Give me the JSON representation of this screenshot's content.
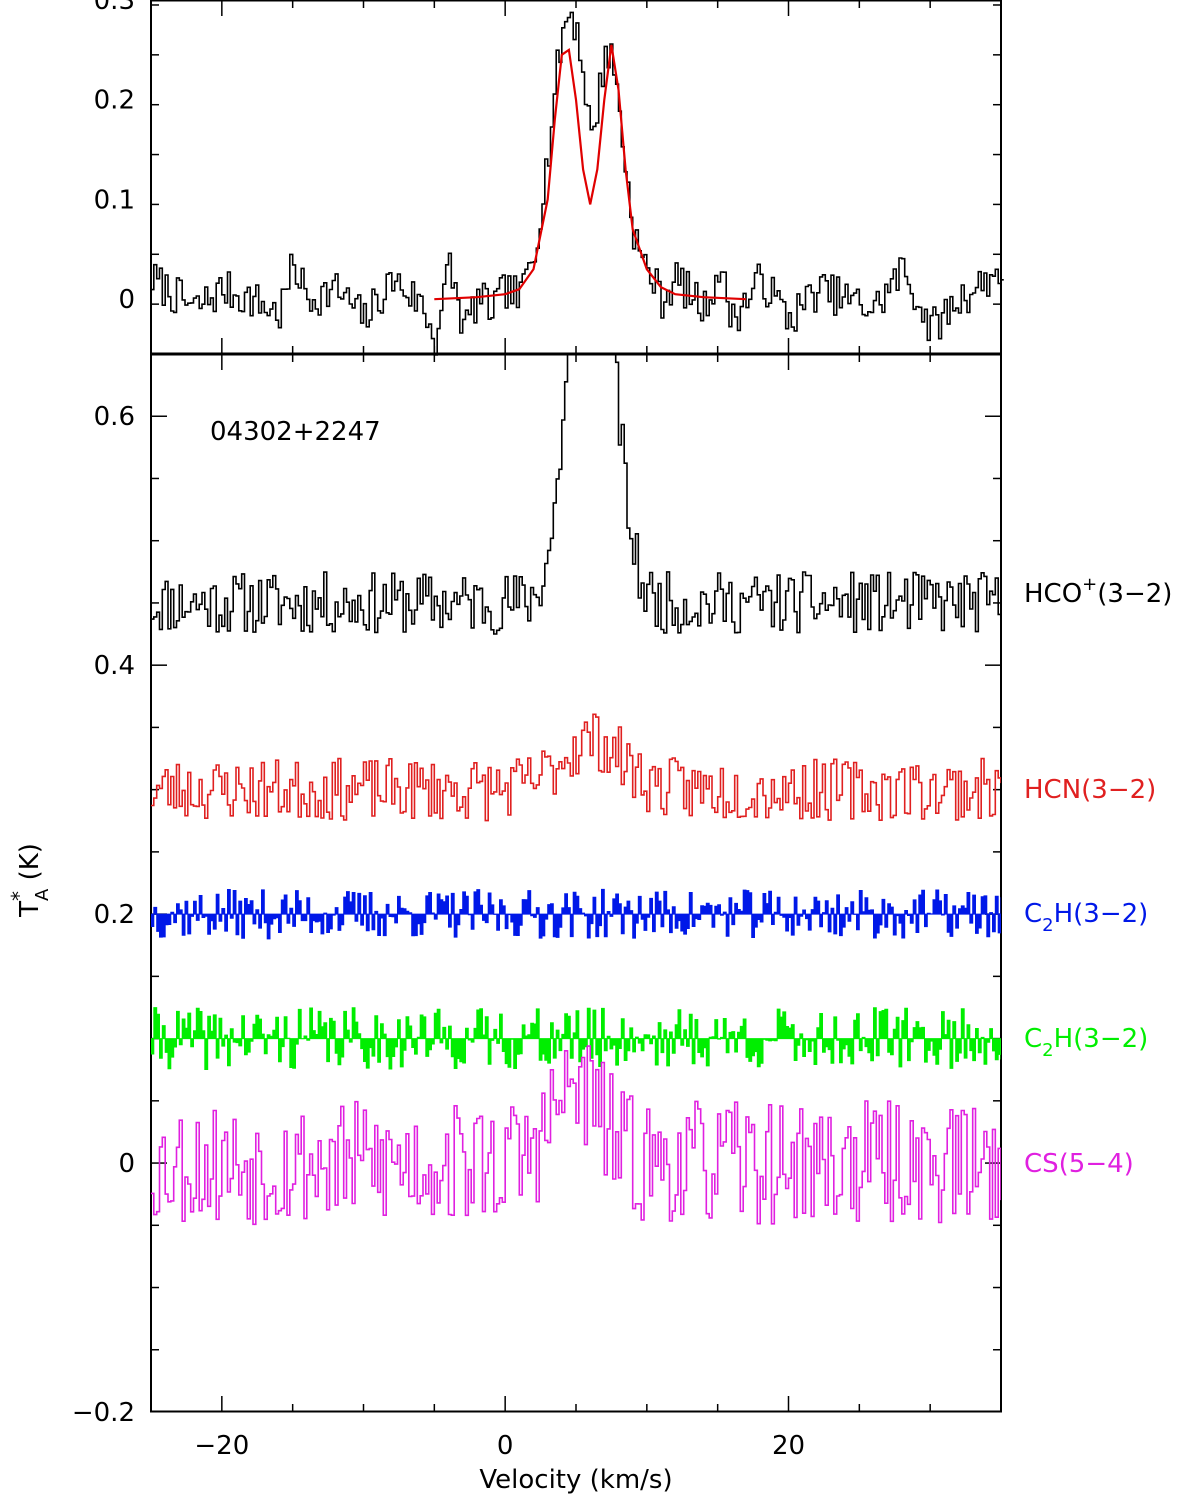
{
  "chart_data": [
    {
      "type": "line",
      "panel": "top",
      "xlabel": "",
      "ylabel": "",
      "xlim": [
        -25,
        35
      ],
      "ylim": [
        -0.055,
        0.3
      ],
      "yticks": [
        "0",
        "0.1",
        "0.2",
        "0.3"
      ],
      "ytick_values": [
        0,
        0.1,
        0.2,
        0.3
      ],
      "series": [
        {
          "color": "#000000",
          "style": "histogram",
          "x": [
            -25,
            -22,
            -20,
            -18,
            -16,
            -15,
            -14,
            -12,
            -10,
            -8,
            -6,
            -5,
            -4,
            -3,
            -2,
            -1,
            0,
            1,
            1.5,
            2,
            2.5,
            3,
            3.5,
            4,
            4.5,
            5,
            5.5,
            6,
            6.5,
            7,
            7.5,
            8,
            8.5,
            9,
            9.5,
            10,
            11,
            12,
            13,
            14,
            15,
            16,
            17,
            18,
            20,
            22,
            24,
            26,
            28,
            30,
            32,
            34,
            35
          ],
          "values": [
            0.02,
            -0.01,
            0.01,
            0.0,
            -0.015,
            0.035,
            0.0,
            0.01,
            -0.02,
            0.02,
            -0.005,
            -0.04,
            0.035,
            -0.03,
            0.0,
            -0.01,
            0.01,
            0.0,
            0.03,
            0.05,
            0.1,
            0.15,
            0.22,
            0.27,
            0.29,
            0.27,
            0.22,
            0.16,
            0.2,
            0.25,
            0.24,
            0.19,
            0.12,
            0.07,
            0.04,
            0.03,
            0.0,
            0.02,
            0.005,
            -0.01,
            0.03,
            -0.02,
            0.0,
            0.02,
            -0.02,
            0.01,
            0.0,
            -0.01,
            0.03,
            -0.03,
            0.0,
            0.02,
            0.03
          ]
        },
        {
          "color": "#e00000",
          "style": "line",
          "x": [
            -5,
            -2,
            0,
            1,
            2,
            3,
            3.5,
            4,
            4.5,
            5,
            5.5,
            6,
            6.5,
            7,
            7.5,
            8,
            8.5,
            9,
            10,
            11,
            12,
            14,
            17
          ],
          "values": [
            0.0,
            0.002,
            0.005,
            0.01,
            0.03,
            0.1,
            0.18,
            0.245,
            0.25,
            0.2,
            0.13,
            0.095,
            0.13,
            0.2,
            0.255,
            0.21,
            0.13,
            0.07,
            0.03,
            0.012,
            0.005,
            0.002,
            0.0
          ]
        }
      ]
    },
    {
      "type": "line",
      "panel": "bottom",
      "source": "04302+2247",
      "xlabel": "Velocity (km/s)",
      "ylabel_main": "T",
      "ylabel_sup": "*",
      "ylabel_sub": "A",
      "ylabel_unit": " (K)",
      "xlim": [
        -25,
        35
      ],
      "ylim": [
        -0.2,
        0.65
      ],
      "xticks": [
        "−20",
        "0",
        "20"
      ],
      "xtick_values": [
        -20,
        0,
        20
      ],
      "yticks": [
        "−0.2",
        "0",
        "0.2",
        "0.4",
        "0.6"
      ],
      "ytick_values": [
        -0.2,
        0,
        0.2,
        0.4,
        0.6
      ],
      "series": [
        {
          "label_main": "HCO",
          "label_sup": "+",
          "label_rest": "(3−2)",
          "color": "#000000",
          "style": "histogram",
          "baseline": 0.45,
          "amplitude": 0.025,
          "peak": {
            "center": 6,
            "width": 2.0,
            "height": 0.4
          }
        },
        {
          "label_main": "HCN(3−2)",
          "color": "#e02020",
          "style": "histogram",
          "baseline": 0.3,
          "amplitude": 0.025,
          "peak": {
            "center": 6,
            "width": 3.0,
            "height": 0.04
          }
        },
        {
          "label_main": "C",
          "label_sub": "2",
          "label_rest": "H(3−2)",
          "color": "#0018e8",
          "style": "filled",
          "baseline": 0.2,
          "amplitude": 0.02
        },
        {
          "label_main": "C",
          "label_sub": "2",
          "label_rest": "H(3−2)",
          "color": "#00ee00",
          "style": "filled",
          "baseline": 0.1,
          "amplitude": 0.025
        },
        {
          "label_main": "CS(5−4)",
          "color": "#e020e0",
          "style": "histogram",
          "baseline": 0.0,
          "amplitude": 0.05,
          "peak": {
            "center": 5,
            "width": 2.5,
            "height": 0.06
          }
        }
      ]
    }
  ]
}
